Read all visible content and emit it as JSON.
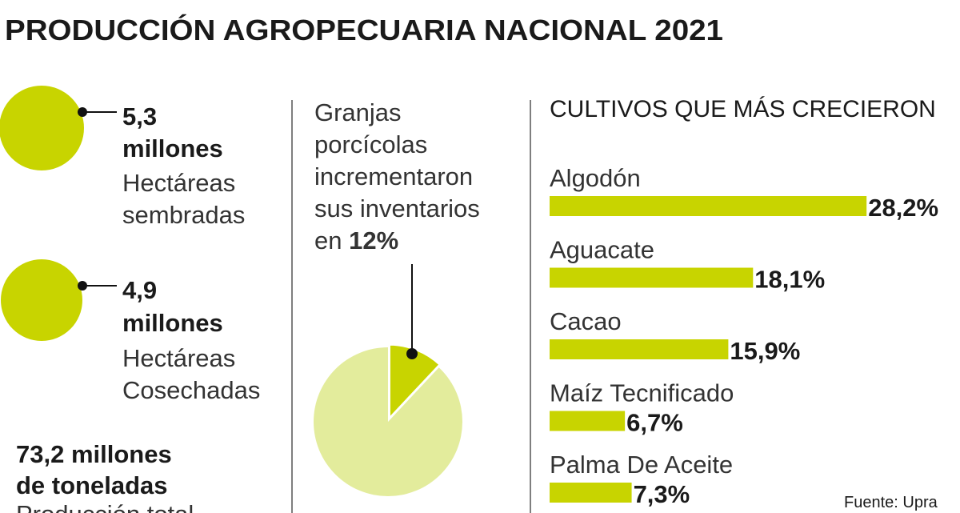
{
  "title": "PRODUCCIÓN AGROPECUARIA NACIONAL 2021",
  "stats": [
    {
      "bold": [
        "5,3",
        "millones"
      ],
      "light": [
        "Hectáreas",
        "sembradas"
      ]
    },
    {
      "bold": [
        "4,9",
        "millones"
      ],
      "light": [
        "Hectáreas",
        "Cosechadas"
      ]
    }
  ],
  "total": {
    "bold": [
      "73,2 millones",
      "de toneladas"
    ],
    "light": [
      "Producción total"
    ]
  },
  "pie_text": [
    "Granjas",
    "porcícolas",
    "incrementaron",
    "sus inventarios",
    "en"
  ],
  "source": "Fuente: Upra",
  "chart_data": [
    {
      "type": "pie",
      "values": [
        12
      ],
      "value_labels": [
        "12%"
      ],
      "colors": [
        "#c8d400"
      ]
    },
    {
      "type": "bar",
      "title": "CULTIVOS QUE MÁS CRECIERON",
      "categories": [
        "Algodón",
        "Aguacate",
        "Cacao",
        "Maíz Tecnificado",
        "Palma De Aceite"
      ],
      "values": [
        28.2,
        18.1,
        15.9,
        6.7,
        7.3
      ],
      "value_labels": [
        "28,2%",
        "18,1%",
        "15,9%",
        "6,7%",
        "7,3%"
      ],
      "color": "#c8d400"
    }
  ]
}
